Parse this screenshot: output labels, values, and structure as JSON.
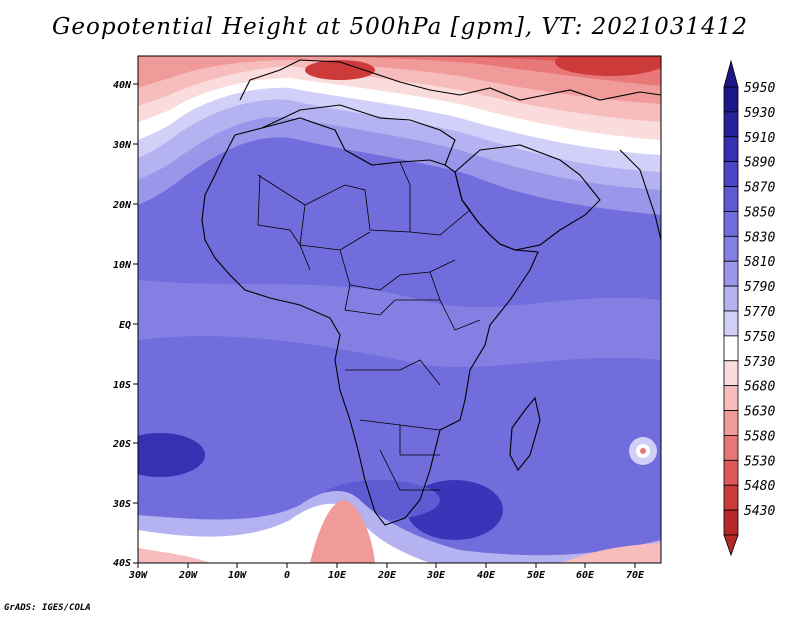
{
  "title": "Geopotential Height at 500hPa [gpm], VT: 2021031412",
  "footer": "GrADS: IGES/COLA",
  "map": {
    "variable": "Geopotential Height",
    "level": "500hPa",
    "units": "gpm",
    "valid_time": "2021031412",
    "lon_labels": [
      "30W",
      "20W",
      "10W",
      "0",
      "10E",
      "20E",
      "30E",
      "40E",
      "50E",
      "60E",
      "70E"
    ],
    "lat_labels": [
      "40N",
      "30N",
      "20N",
      "10N",
      "EQ",
      "10S",
      "20S",
      "30S",
      "40S"
    ]
  },
  "colorbar": {
    "levels": [
      "5950",
      "5930",
      "5910",
      "5890",
      "5870",
      "5850",
      "5830",
      "5810",
      "5790",
      "5770",
      "5750",
      "5730",
      "5680",
      "5630",
      "5580",
      "5530",
      "5480",
      "5430"
    ],
    "colors": [
      "#1c1689",
      "#27229c",
      "#3630b2",
      "#4a46c6",
      "#5e5ad2",
      "#716ddc",
      "#8480e3",
      "#9a96ea",
      "#b5b2f1",
      "#d2d0f8",
      "#ffffff",
      "#fbdcdc",
      "#f7bcbc",
      "#f09a9a",
      "#e87878",
      "#de5a5a",
      "#cd3a3a",
      "#b72828"
    ]
  },
  "colors": {
    "cold_high": "#5e5ad2",
    "warm_low": "#d84545"
  }
}
